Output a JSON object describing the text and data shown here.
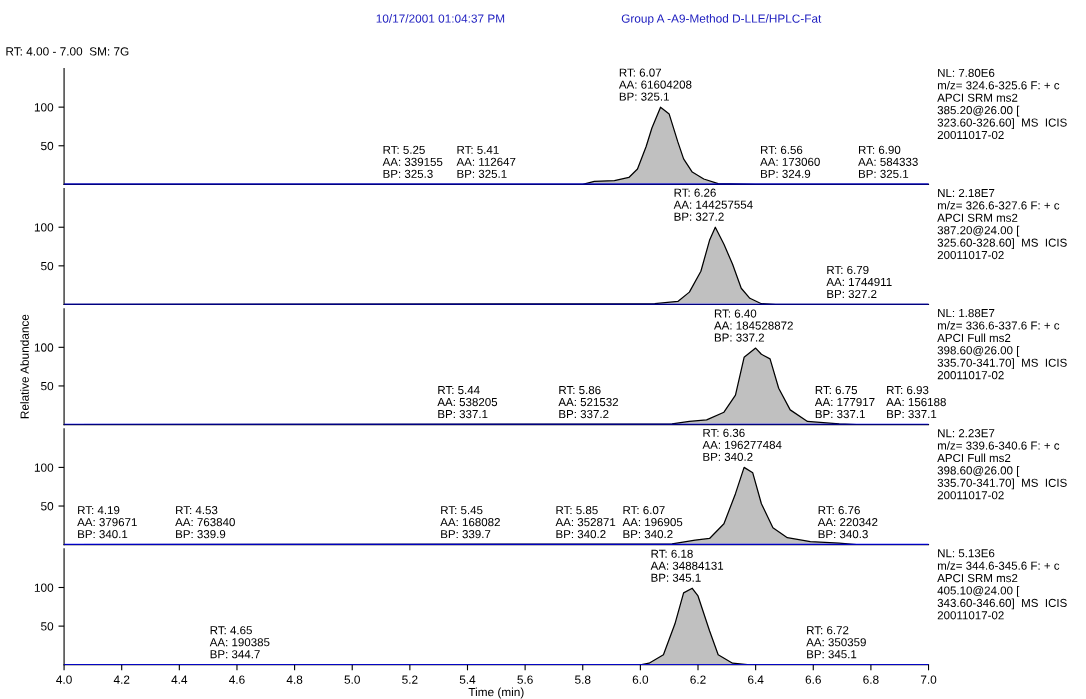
{
  "chart_data": [
    {
      "type": "area",
      "title": "Group A -A9-Method D-LLE/HPLC-Fat",
      "subtitle": "RT: 4.00 - 7.00  SM: 7G",
      "xlim": [
        4.0,
        7.0
      ],
      "ylim": [
        0,
        150
      ],
      "yticks": [
        50,
        100
      ],
      "tick_labels": "y",
      "x": [
        4.0,
        5.8,
        5.84,
        5.91,
        5.96,
        5.99,
        6.02,
        6.04,
        6.07,
        6.1,
        6.13,
        6.15,
        6.18,
        6.22,
        6.27,
        6.4,
        7.0
      ],
      "series": [
        {
          "color": "#c0c0c0",
          "values": [
            0,
            0,
            4,
            5,
            9,
            20,
            49,
            73,
            100,
            91,
            55,
            33,
            16,
            7,
            1,
            0,
            0
          ]
        }
      ],
      "ref_lines": [
        {
          "axis": "y",
          "value": 0,
          "color": "#0000ff"
        }
      ],
      "annotations": [
        "NL: 7.80E6\nm/z= 324.6-325.6 F: + c\nAPCI SRM ms2\n385.20@26.00 [\n323.60-326.60]  MS  ICIS\n20011017-02",
        "10/17/2001 01:04:37 PM",
        {
          "text": "RT: 5.25\nAA: 339155\nBP: 325.3",
          "x": 5.25,
          "y": 0
        },
        {
          "text": "RT: 5.41\nAA: 112647\nBP: 325.1",
          "x": 5.41,
          "y": 0
        },
        {
          "text": "RT: 6.07\nAA: 61604208\nBP: 325.1",
          "x": 6.07,
          "y": 100
        },
        {
          "text": "RT: 6.56\nAA: 173060\nBP: 324.9",
          "x": 6.56,
          "y": 0
        },
        {
          "text": "RT: 6.90\nAA: 584333\nBP: 325.1",
          "x": 6.9,
          "y": 0
        }
      ]
    },
    {
      "type": "area",
      "xlim": [
        4.0,
        7.0
      ],
      "ylim": [
        0,
        150
      ],
      "yticks": [
        50,
        100
      ],
      "tick_labels": "y",
      "x": [
        4.0,
        6.05,
        6.13,
        6.17,
        6.21,
        6.24,
        6.26,
        6.29,
        6.32,
        6.35,
        6.38,
        6.42,
        6.47,
        7.0
      ],
      "series": [
        {
          "color": "#c0c0c0",
          "values": [
            0,
            1,
            4,
            16,
            43,
            83,
            100,
            78,
            52,
            21,
            8,
            1,
            0,
            0
          ]
        }
      ],
      "ref_lines": [
        {
          "axis": "y",
          "value": 0,
          "color": "#0000ff"
        }
      ],
      "annotations": [
        "NL: 2.18E7\nm/z= 326.6-327.6 F: + c\nAPCI SRM ms2\n387.20@24.00 [\n325.60-328.60]  MS  ICIS\n20011017-02",
        {
          "text": "RT: 6.26\nAA: 144257554\nBP: 327.2",
          "x": 6.26,
          "y": 100
        },
        {
          "text": "RT: 6.79\nAA: 1744911\nBP: 327.2",
          "x": 6.79,
          "y": 0
        }
      ]
    },
    {
      "type": "area",
      "ylabel": "Relative Abundance",
      "xlim": [
        4.0,
        7.0
      ],
      "ylim": [
        0,
        150
      ],
      "yticks": [
        50,
        100
      ],
      "tick_labels": "y",
      "x": [
        4.0,
        6.11,
        6.17,
        6.23,
        6.29,
        6.33,
        6.36,
        6.4,
        6.42,
        6.45,
        6.48,
        6.52,
        6.58,
        6.69,
        6.75,
        7.0
      ],
      "series": [
        {
          "color": "#c0c0c0",
          "values": [
            0,
            1,
            4,
            6,
            16,
            38,
            87,
            99,
            91,
            85,
            47,
            19,
            4,
            1,
            0,
            0
          ]
        }
      ],
      "ref_lines": [
        {
          "axis": "y",
          "value": 0,
          "color": "#0000ff"
        }
      ],
      "annotations": [
        "NL: 1.88E7\nm/z= 336.6-337.6 F: + c\nAPCI Full ms2\n398.60@26.00 [\n335.70-341.70]  MS  ICIS\n20011017-02",
        {
          "text": "RT: 5.44\nAA: 538205\nBP: 337.1",
          "x": 5.44,
          "y": 0
        },
        {
          "text": "RT: 5.86\nAA: 521532\nBP: 337.2",
          "x": 5.86,
          "y": 0
        },
        {
          "text": "RT: 6.40\nAA: 184528872\nBP: 337.2",
          "x": 6.4,
          "y": 99
        },
        {
          "text": "RT: 6.75\nAA: 177917\nBP: 337.1",
          "x": 6.75,
          "y": 0
        },
        {
          "text": "RT: 6.93\nAA: 156188\nBP: 337.1",
          "x": 6.93,
          "y": 0
        }
      ]
    },
    {
      "type": "area",
      "xlim": [
        4.0,
        7.0
      ],
      "ylim": [
        0,
        150
      ],
      "yticks": [
        50,
        100
      ],
      "tick_labels": "y",
      "x": [
        4.0,
        6.11,
        6.19,
        6.24,
        6.29,
        6.33,
        6.36,
        6.39,
        6.42,
        6.46,
        6.51,
        6.59,
        6.69,
        6.75,
        7.0
      ],
      "series": [
        {
          "color": "#c0c0c0",
          "values": [
            0,
            1,
            6,
            8,
            27,
            66,
            100,
            93,
            53,
            22,
            9,
            4,
            2,
            0,
            0
          ]
        }
      ],
      "ref_lines": [
        {
          "axis": "y",
          "value": 0,
          "color": "#0000ff"
        }
      ],
      "annotations": [
        "NL: 2.23E7\nm/z= 339.6-340.6 F: + c\nAPCI Full ms2\n398.60@26.00 [\n335.70-341.70]  MS  ICIS\n20011017-02",
        {
          "text": "RT: 4.19\nAA: 379671\nBP: 340.1",
          "x": 4.19,
          "y": 0
        },
        {
          "text": "RT: 4.53\nAA: 763840\nBP: 339.9",
          "x": 4.53,
          "y": 0
        },
        {
          "text": "RT: 5.45\nAA: 168082\nBP: 339.7",
          "x": 5.45,
          "y": 0
        },
        {
          "text": "RT: 5.85\nAA: 352871\nBP: 340.2",
          "x": 5.85,
          "y": 0
        },
        {
          "text": "RT: 6.07\nAA: 196905\nBP: 340.2",
          "x": 6.07,
          "y": 0
        },
        {
          "text": "RT: 6.36\nAA: 196277484\nBP: 340.2",
          "x": 6.36,
          "y": 100
        },
        {
          "text": "RT: 6.76\nAA: 220342\nBP: 340.3",
          "x": 6.76,
          "y": 0
        }
      ]
    },
    {
      "type": "area",
      "xlabel": "Time (min)",
      "xlim": [
        4.0,
        7.0
      ],
      "ylim": [
        0,
        150
      ],
      "yticks": [
        50,
        100
      ],
      "xticks": [
        {
          "value": 4,
          "label": "4.0"
        },
        4.2,
        4.4,
        4.6,
        4.8,
        {
          "value": 5,
          "label": "5.0"
        },
        5.2,
        5.4,
        5.6,
        5.8,
        {
          "value": 6,
          "label": "6.0"
        },
        6.2,
        6.4,
        6.6,
        6.8,
        {
          "value": 7,
          "label": "7.0"
        }
      ],
      "x": [
        4.0,
        6.0,
        6.03,
        6.08,
        6.12,
        6.15,
        6.18,
        6.2,
        6.24,
        6.27,
        6.32,
        6.38,
        7.0
      ],
      "series": [
        {
          "color": "#c0c0c0",
          "values": [
            0,
            0,
            2,
            13,
            53,
            93,
            99,
            89,
            44,
            13,
            2,
            0,
            0
          ]
        }
      ],
      "ref_lines": [
        {
          "axis": "y",
          "value": 0,
          "color": "#0000ff"
        }
      ],
      "annotations": [
        "NL: 5.13E6\nm/z= 344.6-345.6 F: + c\nAPCI SRM ms2\n405.10@24.00 [\n343.60-346.60]  MS  ICIS\n20011017-02",
        {
          "text": "RT: 4.65\nAA: 190385\nBP: 344.7",
          "x": 4.65,
          "y": 0
        },
        {
          "text": "RT: 6.18\nAA: 34884131\nBP: 345.1",
          "x": 6.18,
          "y": 99
        },
        {
          "text": "RT: 6.72\nAA: 350359\nBP: 345.1",
          "x": 6.72,
          "y": 0
        }
      ]
    }
  ]
}
